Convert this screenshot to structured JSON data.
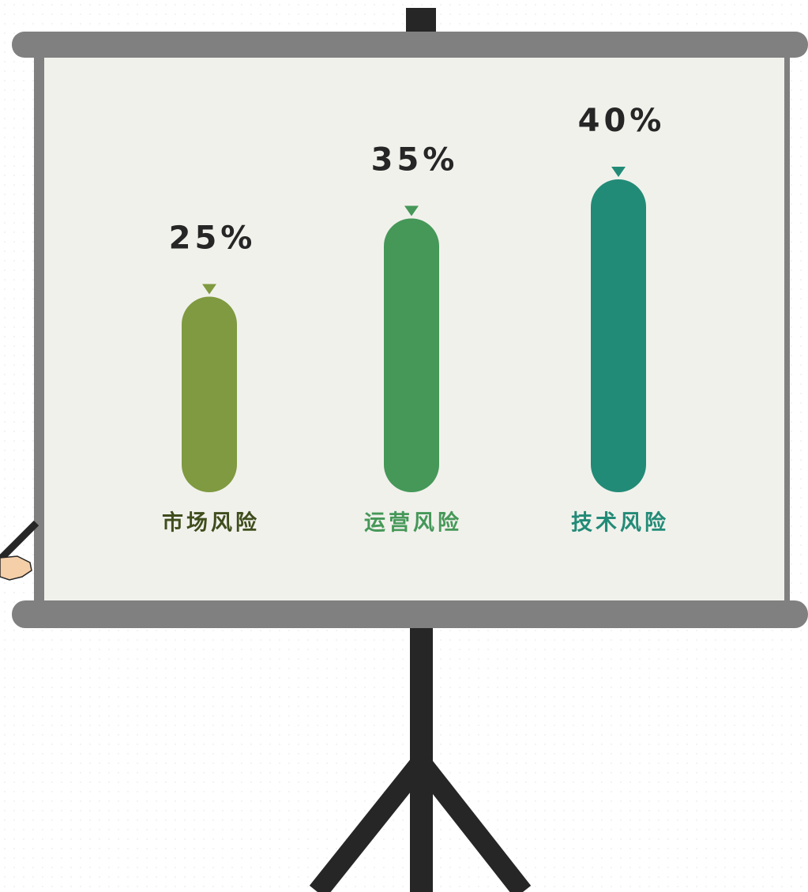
{
  "chart_data": {
    "type": "bar",
    "categories": [
      "市场风险",
      "运营风险",
      "技术风险"
    ],
    "values": [
      25,
      35,
      40
    ],
    "value_labels": [
      "25%",
      "35%",
      "40%"
    ],
    "colors": [
      "#7f9a40",
      "#459858",
      "#228b77"
    ],
    "label_colors": [
      "#3f4d1c",
      "#459858",
      "#228b77"
    ]
  }
}
